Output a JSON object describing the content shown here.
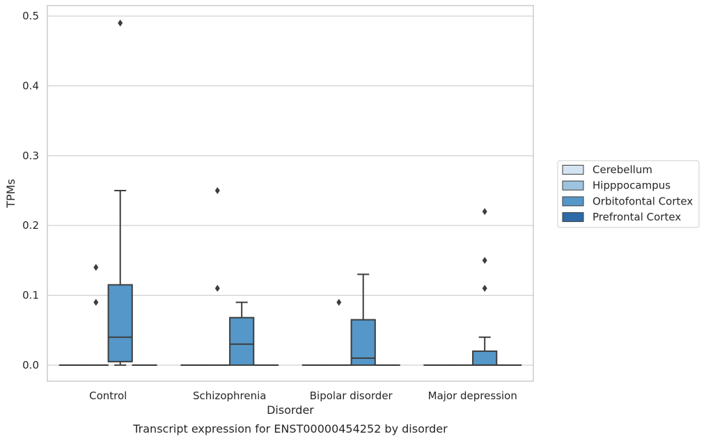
{
  "caption": "Transcript expression for ENST00000454252 by disorder",
  "colors": {
    "Cerebellum": "#d3e3f1",
    "Hipppocampus": "#9dc3de",
    "Orbitofontal Cortex": "#5597c8",
    "Prefrontal Cortex": "#2d6aa7",
    "box_line": "#3d3d3d",
    "grid": "#cccccc",
    "frame": "#cccccc"
  },
  "chart_data": {
    "type": "box",
    "xlabel": "Disorder",
    "ylabel": "TPMs",
    "ylim": [
      -0.023,
      0.515
    ],
    "yticks": [
      0.0,
      0.1,
      0.2,
      0.3,
      0.4,
      0.5
    ],
    "ytick_labels": [
      "0.0",
      "0.1",
      "0.2",
      "0.3",
      "0.4",
      "0.5"
    ],
    "grid": true,
    "legend_position": "right",
    "categories": [
      "Control",
      "Schizophrenia",
      "Bipolar disorder",
      "Major depression"
    ],
    "series": [
      {
        "name": "Cerebellum",
        "boxes": [
          {
            "q1": 0,
            "median": 0,
            "q3": 0,
            "whislo": 0,
            "whishi": 0,
            "fliers": []
          },
          {
            "q1": 0,
            "median": 0,
            "q3": 0,
            "whislo": 0,
            "whishi": 0,
            "fliers": []
          },
          {
            "q1": 0,
            "median": 0,
            "q3": 0,
            "whislo": 0,
            "whishi": 0,
            "fliers": []
          },
          {
            "q1": 0,
            "median": 0,
            "q3": 0,
            "whislo": 0,
            "whishi": 0,
            "fliers": []
          }
        ]
      },
      {
        "name": "Hipppocampus",
        "boxes": [
          {
            "q1": 0,
            "median": 0,
            "q3": 0,
            "whislo": 0,
            "whishi": 0,
            "fliers": [
              0.09,
              0.14
            ]
          },
          {
            "q1": 0,
            "median": 0,
            "q3": 0,
            "whislo": 0,
            "whishi": 0,
            "fliers": [
              0.11,
              0.25
            ]
          },
          {
            "q1": 0,
            "median": 0,
            "q3": 0,
            "whislo": 0,
            "whishi": 0,
            "fliers": [
              0.09
            ]
          },
          {
            "q1": 0,
            "median": 0,
            "q3": 0,
            "whislo": 0,
            "whishi": 0,
            "fliers": []
          }
        ]
      },
      {
        "name": "Orbitofontal Cortex",
        "boxes": [
          {
            "q1": 0.005,
            "median": 0.04,
            "q3": 0.115,
            "whislo": 0,
            "whishi": 0.25,
            "fliers": [
              0.49
            ]
          },
          {
            "q1": 0,
            "median": 0.03,
            "q3": 0.068,
            "whislo": 0,
            "whishi": 0.09,
            "fliers": []
          },
          {
            "q1": 0,
            "median": 0.01,
            "q3": 0.065,
            "whislo": 0,
            "whishi": 0.13,
            "fliers": []
          },
          {
            "q1": 0,
            "median": 0,
            "q3": 0.02,
            "whislo": 0,
            "whishi": 0.04,
            "fliers": [
              0.11,
              0.15,
              0.22
            ]
          }
        ]
      },
      {
        "name": "Prefrontal Cortex",
        "boxes": [
          {
            "q1": 0,
            "median": 0,
            "q3": 0,
            "whislo": 0,
            "whishi": 0,
            "fliers": []
          },
          {
            "q1": 0,
            "median": 0,
            "q3": 0,
            "whislo": 0,
            "whishi": 0,
            "fliers": []
          },
          {
            "q1": 0,
            "median": 0,
            "q3": 0,
            "whislo": 0,
            "whishi": 0,
            "fliers": []
          },
          {
            "q1": 0,
            "median": 0,
            "q3": 0,
            "whislo": 0,
            "whishi": 0,
            "fliers": []
          }
        ]
      }
    ]
  }
}
